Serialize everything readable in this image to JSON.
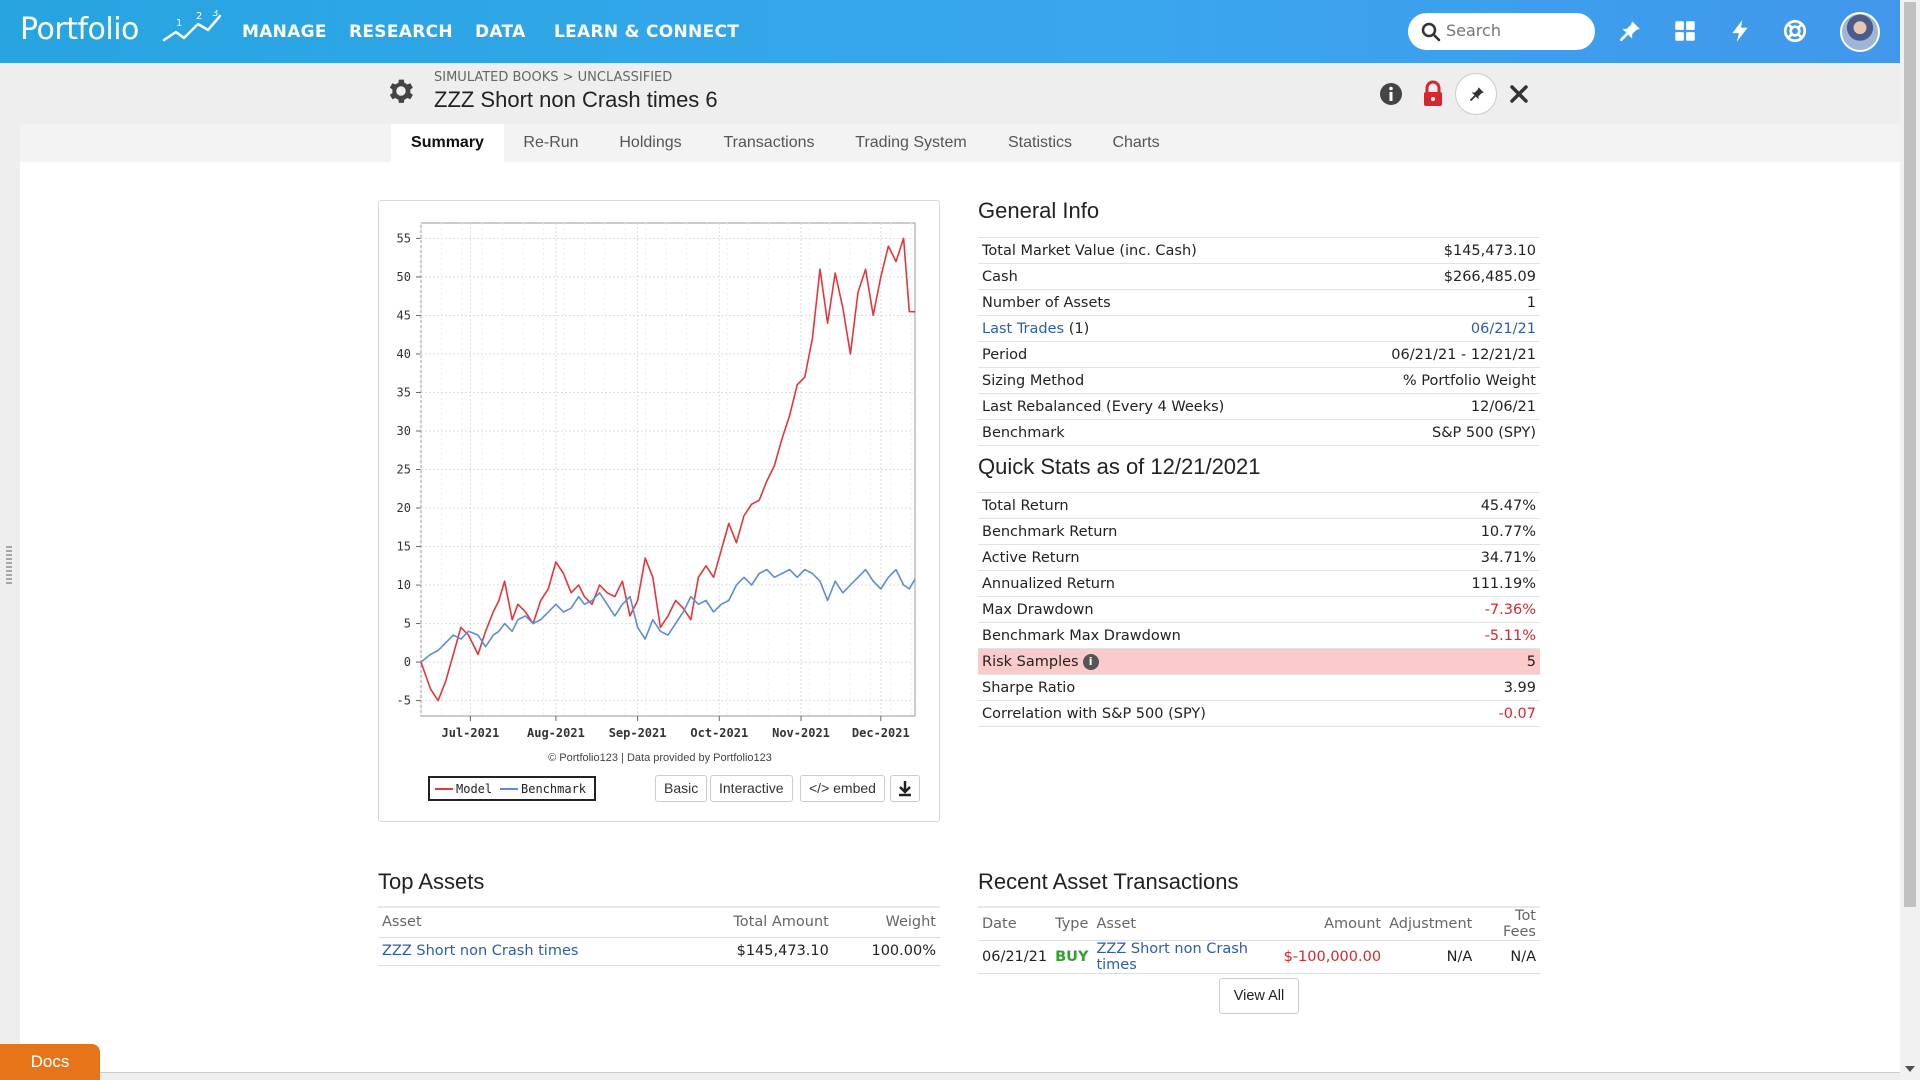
{
  "app": {
    "logo": "Portfolio",
    "nav": [
      "MANAGE",
      "RESEARCH",
      "DATA",
      "LEARN & CONNECT"
    ],
    "search_placeholder": "Search"
  },
  "header": {
    "breadcrumb": "SIMULATED BOOKS > UNCLASSIFIED",
    "title": "ZZZ Short non Crash times 6"
  },
  "tabs": [
    {
      "label": "Summary",
      "active": true
    },
    {
      "label": "Re-Run"
    },
    {
      "label": "Holdings"
    },
    {
      "label": "Transactions"
    },
    {
      "label": "Trading System"
    },
    {
      "label": "Statistics"
    },
    {
      "label": "Charts"
    }
  ],
  "chart": {
    "credit": "© Portfolio123 | Data provided by Portfolio123",
    "buttons": {
      "basic": "Basic",
      "interactive": "Interactive",
      "embed": "</> embed"
    }
  },
  "chart_data": {
    "type": "line",
    "title": "",
    "xlabel": "",
    "ylabel": "",
    "ylim": [
      -7,
      57
    ],
    "yticks": [
      -5,
      0,
      5,
      10,
      15,
      20,
      25,
      30,
      35,
      40,
      45,
      50,
      55
    ],
    "xticks": [
      "Jul-2021",
      "Aug-2021",
      "Sep-2021",
      "Oct-2021",
      "Nov-2021",
      "Dec-2021"
    ],
    "xlim": [
      0,
      26
    ],
    "legend": "bottom-left",
    "grid": true,
    "colors": {
      "Model": "#e8353c",
      "Benchmark": "#5b8ed6"
    },
    "series": [
      {
        "name": "Model",
        "x": [
          0,
          0.5,
          0.9,
          1.3,
          1.7,
          2.1,
          2.5,
          3.0,
          3.4,
          3.8,
          4.1,
          4.4,
          4.8,
          5.1,
          5.5,
          5.9,
          6.3,
          6.7,
          7.1,
          7.5,
          7.9,
          8.3,
          8.6,
          9.0,
          9.4,
          9.8,
          10.2,
          10.6,
          11.0,
          11.4,
          11.8,
          12.2,
          12.6,
          13.0,
          13.4,
          13.8,
          14.2,
          14.6,
          15.0,
          15.4,
          15.8,
          16.2,
          16.6,
          17.0,
          17.4,
          17.8,
          18.2,
          18.6,
          19.0,
          19.4,
          19.8,
          20.2,
          20.6,
          21.0,
          21.4,
          21.8,
          22.2,
          22.6,
          23.0,
          23.4,
          23.8,
          24.2,
          24.6,
          25.0,
          25.4,
          25.7,
          26.0
        ],
        "values": [
          0,
          -3.5,
          -5.0,
          -2.5,
          1.0,
          4.5,
          3.5,
          1.0,
          4.0,
          6.5,
          8.0,
          10.5,
          5.5,
          7.5,
          6.5,
          5.0,
          8.0,
          9.5,
          13.0,
          11.5,
          9.0,
          10.0,
          8.5,
          7.5,
          10.0,
          9.0,
          8.5,
          10.5,
          6.0,
          8.0,
          13.5,
          11.0,
          4.5,
          6.0,
          8.0,
          7.0,
          5.5,
          11.0,
          12.5,
          11.0,
          14.5,
          18.0,
          15.5,
          19.0,
          20.5,
          21.0,
          23.5,
          25.5,
          29.0,
          32.0,
          36.0,
          37.0,
          42.0,
          51.0,
          44.0,
          50.5,
          46.0,
          40.0,
          48.0,
          51.0,
          45.0,
          50.0,
          54.0,
          52.0,
          55.0,
          45.5,
          45.47
        ]
      },
      {
        "name": "Benchmark",
        "x": [
          0,
          0.5,
          0.9,
          1.3,
          1.7,
          2.1,
          2.5,
          3.0,
          3.4,
          3.8,
          4.1,
          4.4,
          4.8,
          5.1,
          5.5,
          5.9,
          6.3,
          6.7,
          7.1,
          7.5,
          7.9,
          8.3,
          8.6,
          9.0,
          9.4,
          9.8,
          10.2,
          10.6,
          11.0,
          11.4,
          11.8,
          12.2,
          12.6,
          13.0,
          13.4,
          13.8,
          14.2,
          14.6,
          15.0,
          15.4,
          15.8,
          16.2,
          16.6,
          17.0,
          17.4,
          17.8,
          18.2,
          18.6,
          19.0,
          19.4,
          19.8,
          20.2,
          20.6,
          21.0,
          21.4,
          21.8,
          22.2,
          22.6,
          23.0,
          23.4,
          23.8,
          24.2,
          24.6,
          25.0,
          25.4,
          25.7,
          26.0
        ],
        "values": [
          0,
          1.0,
          1.5,
          2.5,
          3.5,
          3.0,
          4.0,
          3.5,
          2.0,
          3.5,
          4.0,
          5.0,
          4.0,
          5.5,
          6.0,
          5.0,
          5.5,
          6.5,
          7.5,
          6.5,
          7.0,
          8.5,
          7.5,
          8.0,
          9.0,
          7.5,
          6.0,
          7.5,
          8.5,
          4.5,
          3.0,
          5.5,
          4.0,
          3.5,
          5.0,
          6.5,
          8.5,
          7.5,
          8.0,
          6.5,
          7.5,
          8.0,
          10.0,
          11.0,
          10.0,
          11.5,
          12.0,
          11.0,
          11.5,
          12.0,
          11.0,
          12.0,
          11.5,
          10.5,
          8.0,
          10.5,
          9.0,
          10.0,
          11.0,
          12.0,
          10.5,
          9.5,
          11.0,
          12.0,
          10.0,
          9.5,
          10.77
        ]
      }
    ]
  },
  "general_info": {
    "title": "General Info",
    "rows": [
      {
        "label": "Total Market Value (inc. Cash)",
        "value": "$145,473.10"
      },
      {
        "label": "Cash",
        "value": "$266,485.09"
      },
      {
        "label": "Number of Assets",
        "value": "1"
      },
      {
        "label": "Last Trades",
        "label_suffix": "(1)",
        "value": "06/21/21",
        "link": true
      },
      {
        "label": "Period",
        "value": "06/21/21 - 12/21/21"
      },
      {
        "label": "Sizing Method",
        "value": "% Portfolio Weight"
      },
      {
        "label": "Last Rebalanced (Every 4 Weeks)",
        "value": "12/06/21"
      },
      {
        "label": "Benchmark",
        "value": "S&P 500 (SPY)"
      }
    ]
  },
  "quick_stats": {
    "title": "Quick Stats as of 12/21/2021",
    "rows": [
      {
        "label": "Total Return",
        "value": "45.47%"
      },
      {
        "label": "Benchmark Return",
        "value": "10.77%"
      },
      {
        "label": "Active Return",
        "value": "34.71%"
      },
      {
        "label": "Annualized Return",
        "value": "111.19%"
      },
      {
        "label": "Max Drawdown",
        "value": "-7.36%",
        "negative": true
      },
      {
        "label": "Benchmark Max Drawdown",
        "value": "-5.11%",
        "negative": true
      },
      {
        "label": "Risk Samples",
        "value": "5",
        "highlight": true
      },
      {
        "label": "Sharpe Ratio",
        "value": "3.99"
      },
      {
        "label": "Correlation with S&P 500 (SPY)",
        "value": "-0.07",
        "negative": true
      }
    ]
  },
  "top_assets": {
    "title": "Top Assets",
    "headers": [
      "Asset",
      "Total Amount",
      "Weight"
    ],
    "rows": [
      {
        "asset": "ZZZ Short non Crash times",
        "amount": "$145,473.10",
        "weight": "100.00%"
      }
    ]
  },
  "recent_transactions": {
    "title": "Recent Asset Transactions",
    "headers": [
      "Date",
      "Type",
      "Asset",
      "Amount",
      "Adjustment",
      "Tot Fees"
    ],
    "rows": [
      {
        "date": "06/21/21",
        "type": "BUY",
        "asset": "ZZZ Short non Crash times",
        "amount": "$-100,000.00",
        "adjustment": "N/A",
        "fees": "N/A"
      }
    ],
    "view_all": "View All"
  },
  "docs_label": "Docs"
}
